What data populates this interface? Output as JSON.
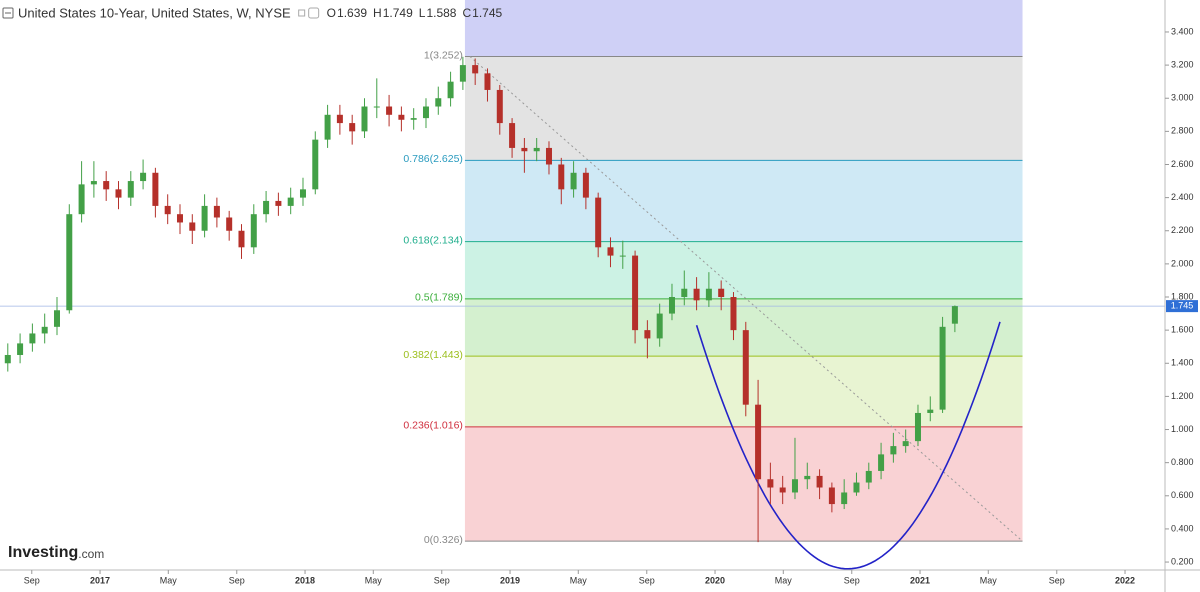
{
  "chart_data": {
    "type": "candlestick",
    "header": {
      "title": "United States 10-Year, United States, W, NYSE",
      "ohlc": [
        {
          "key": "O",
          "value": 1.639
        },
        {
          "key": "H",
          "value": 1.749
        },
        {
          "key": "L",
          "value": 1.588
        },
        {
          "key": "C",
          "value": 1.745
        }
      ]
    },
    "logo": {
      "name": "Investing",
      "suffix": ".com"
    },
    "up_color": "#43a047",
    "down_color": "#b5302a",
    "x": [
      2016.55,
      2016.61,
      2016.67,
      2016.73,
      2016.79,
      2016.85,
      2016.91,
      2016.97,
      2017.03,
      2017.09,
      2017.15,
      2017.21,
      2017.27,
      2017.33,
      2017.39,
      2017.45,
      2017.51,
      2017.57,
      2017.63,
      2017.69,
      2017.75,
      2017.81,
      2017.87,
      2017.93,
      2017.99,
      2018.05,
      2018.11,
      2018.17,
      2018.23,
      2018.29,
      2018.35,
      2018.41,
      2018.47,
      2018.53,
      2018.59,
      2018.65,
      2018.71,
      2018.77,
      2018.83,
      2018.89,
      2018.95,
      2019.01,
      2019.07,
      2019.13,
      2019.19,
      2019.25,
      2019.31,
      2019.37,
      2019.43,
      2019.49,
      2019.55,
      2019.61,
      2019.67,
      2019.73,
      2019.79,
      2019.85,
      2019.91,
      2019.97,
      2020.03,
      2020.09,
      2020.15,
      2020.21,
      2020.27,
      2020.33,
      2020.39,
      2020.45,
      2020.51,
      2020.57,
      2020.63,
      2020.69,
      2020.75,
      2020.81,
      2020.87,
      2020.93,
      2020.99,
      2021.05,
      2021.11,
      2021.17
    ],
    "open": [
      1.4,
      1.45,
      1.52,
      1.58,
      1.62,
      1.72,
      2.3,
      2.48,
      2.5,
      2.45,
      2.4,
      2.5,
      2.55,
      2.35,
      2.3,
      2.25,
      2.2,
      2.35,
      2.28,
      2.2,
      2.1,
      2.3,
      2.38,
      2.35,
      2.4,
      2.45,
      2.75,
      2.9,
      2.85,
      2.8,
      2.95,
      2.95,
      2.9,
      2.87,
      2.88,
      2.95,
      3.0,
      3.1,
      3.2,
      3.15,
      3.05,
      2.85,
      2.7,
      2.68,
      2.7,
      2.6,
      2.45,
      2.55,
      2.4,
      2.1,
      2.05,
      2.05,
      1.6,
      1.55,
      1.7,
      1.8,
      1.85,
      1.78,
      1.85,
      1.8,
      1.6,
      1.15,
      0.7,
      0.65,
      0.62,
      0.7,
      0.72,
      0.65,
      0.55,
      0.62,
      0.68,
      0.75,
      0.85,
      0.9,
      0.93,
      1.1,
      1.12,
      1.639
    ],
    "high": [
      1.52,
      1.58,
      1.64,
      1.7,
      1.8,
      2.36,
      2.62,
      2.62,
      2.56,
      2.5,
      2.56,
      2.63,
      2.58,
      2.42,
      2.36,
      2.3,
      2.42,
      2.4,
      2.32,
      2.24,
      2.36,
      2.44,
      2.43,
      2.46,
      2.52,
      2.8,
      2.96,
      2.96,
      2.9,
      3.0,
      3.12,
      3.02,
      2.95,
      2.94,
      3.0,
      3.07,
      3.16,
      3.25,
      3.24,
      3.18,
      3.08,
      2.88,
      2.76,
      2.76,
      2.74,
      2.64,
      2.62,
      2.58,
      2.43,
      2.16,
      2.14,
      2.08,
      1.66,
      1.76,
      1.88,
      1.96,
      1.92,
      1.95,
      1.9,
      1.83,
      1.65,
      1.3,
      0.8,
      0.72,
      0.95,
      0.8,
      0.76,
      0.68,
      0.7,
      0.74,
      0.8,
      0.92,
      0.98,
      1.0,
      1.15,
      1.2,
      1.68,
      1.749
    ],
    "low": [
      1.35,
      1.4,
      1.47,
      1.52,
      1.57,
      1.7,
      2.25,
      2.4,
      2.38,
      2.33,
      2.35,
      2.45,
      2.28,
      2.24,
      2.18,
      2.12,
      2.16,
      2.22,
      2.14,
      2.03,
      2.06,
      2.25,
      2.29,
      2.3,
      2.35,
      2.42,
      2.7,
      2.78,
      2.72,
      2.76,
      2.88,
      2.83,
      2.8,
      2.81,
      2.82,
      2.9,
      2.95,
      3.05,
      3.08,
      2.98,
      2.78,
      2.64,
      2.55,
      2.62,
      2.54,
      2.36,
      2.4,
      2.33,
      2.04,
      1.98,
      1.97,
      1.52,
      1.43,
      1.5,
      1.66,
      1.75,
      1.72,
      1.74,
      1.72,
      1.54,
      1.08,
      0.32,
      0.55,
      0.55,
      0.58,
      0.64,
      0.58,
      0.5,
      0.52,
      0.6,
      0.64,
      0.7,
      0.8,
      0.86,
      0.9,
      1.05,
      1.1,
      1.588
    ],
    "close": [
      1.45,
      1.52,
      1.58,
      1.62,
      1.72,
      2.3,
      2.48,
      2.5,
      2.45,
      2.4,
      2.5,
      2.55,
      2.35,
      2.3,
      2.25,
      2.2,
      2.35,
      2.28,
      2.2,
      2.1,
      2.3,
      2.38,
      2.35,
      2.4,
      2.45,
      2.75,
      2.9,
      2.85,
      2.8,
      2.95,
      2.95,
      2.9,
      2.87,
      2.88,
      2.95,
      3.0,
      3.1,
      3.2,
      3.15,
      3.05,
      2.85,
      2.7,
      2.68,
      2.7,
      2.6,
      2.45,
      2.55,
      2.4,
      2.1,
      2.05,
      2.05,
      1.6,
      1.55,
      1.7,
      1.8,
      1.85,
      1.78,
      1.85,
      1.8,
      1.6,
      1.15,
      0.7,
      0.65,
      0.62,
      0.7,
      0.72,
      0.65,
      0.55,
      0.62,
      0.68,
      0.75,
      0.85,
      0.9,
      0.93,
      1.1,
      1.12,
      1.62,
      1.745
    ],
    "xlim": [
      2016.512,
      2022.195
    ],
    "xticks": [
      {
        "value": 2016.667,
        "label": "Sep"
      },
      2017,
      {
        "value": 2017.333,
        "label": "May"
      },
      {
        "value": 2017.667,
        "label": "Sep"
      },
      2018,
      {
        "value": 2018.333,
        "label": "May"
      },
      {
        "value": 2018.667,
        "label": "Sep"
      },
      2019,
      {
        "value": 2019.333,
        "label": "May"
      },
      {
        "value": 2019.667,
        "label": "Sep"
      },
      2020,
      {
        "value": 2020.333,
        "label": "May"
      },
      {
        "value": 2020.667,
        "label": "Sep"
      },
      2021,
      {
        "value": 2021.333,
        "label": "May"
      },
      {
        "value": 2021.667,
        "label": "Sep"
      },
      2022
    ],
    "ylim": [
      0.152,
      3.593
    ],
    "yticks": [
      {
        "value": 0.2,
        "label": "0.200"
      },
      {
        "value": 0.4,
        "label": "0.400"
      },
      {
        "value": 0.6,
        "label": "0.600"
      },
      {
        "value": 0.8,
        "label": "0.800"
      },
      {
        "value": 1.0,
        "label": "1.000"
      },
      {
        "value": 1.2,
        "label": "1.200"
      },
      {
        "value": 1.4,
        "label": "1.400"
      },
      {
        "value": 1.6,
        "label": "1.600"
      },
      {
        "value": 1.8,
        "label": "1.800"
      },
      {
        "value": 2.0,
        "label": "2.000"
      },
      {
        "value": 2.2,
        "label": "2.200"
      },
      {
        "value": 2.4,
        "label": "2.400"
      },
      {
        "value": 2.6,
        "label": "2.600"
      },
      {
        "value": 2.8,
        "label": "2.800"
      },
      {
        "value": 3.0,
        "label": "3.000"
      },
      {
        "value": 3.2,
        "label": "3.200"
      },
      {
        "value": 3.4,
        "label": "3.400"
      }
    ],
    "price_box_color": "#2f6fd6",
    "fib": {
      "start": 2018.78,
      "end": 2021.5,
      "above_color": "#cfd0f6",
      "levels": [
        {
          "label": "1(3.252)",
          "value": 3.252,
          "color": "#888888",
          "band_color": "#e3e3e3"
        },
        {
          "label": "0.786(2.625)",
          "value": 2.625,
          "color": "#2a9bbf",
          "band_color": "#cfe9f5"
        },
        {
          "label": "0.618(2.134)",
          "value": 2.134,
          "color": "#1fae8c",
          "band_color": "#ccf2e4"
        },
        {
          "label": "0.5(1.789)",
          "value": 1.789,
          "color": "#3caf3c",
          "band_color": "#d4f0cf"
        },
        {
          "label": "0.382(1.443)",
          "value": 1.443,
          "color": "#9cbf1e",
          "band_color": "#e8f4d2"
        },
        {
          "label": "0.236(1.016)",
          "value": 1.016,
          "color": "#d0303f",
          "band_color": "#f9d2d4"
        },
        {
          "label": "0(0.326)",
          "value": 0.326,
          "color": "#888888"
        }
      ]
    },
    "curve": {
      "color": "#2323c8",
      "x": [
        2019.91,
        2020.56,
        2021.39
      ],
      "y": [
        1.63,
        0.18,
        1.65
      ]
    }
  }
}
